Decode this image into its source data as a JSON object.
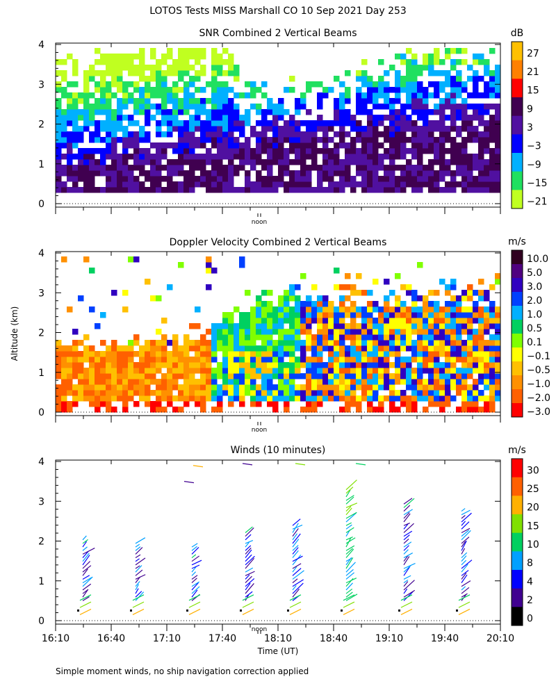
{
  "title": "LOTOS Tests MISS Marshall CO  10 Sep 2021 Day 253",
  "footnote": "Simple moment winds, no ship navigation correction applied",
  "y_axis_label": "Altitude (km)",
  "x_axis_label": "Time (UT)",
  "noon_label": "noon",
  "chart_data": [
    {
      "type": "heatmap",
      "title": "SNR Combined 2 Vertical Beams",
      "unit": "dB",
      "ylim": [
        0,
        4
      ],
      "yticks": [
        0,
        1,
        2,
        3,
        4
      ],
      "colorbar_labels": [
        "27",
        "21",
        "15",
        "9",
        "3",
        "−3",
        "−9",
        "−15",
        "−21"
      ],
      "colors": [
        "#ffc000",
        "#ff8000",
        "#ff0000",
        "#400050",
        "#5010a0",
        "#0000ff",
        "#00b0ff",
        "#20e060",
        "#c0ff20"
      ]
    },
    {
      "type": "heatmap",
      "title": "Doppler Velocity Combined 2 Vertical Beams",
      "unit": "m/s",
      "ylim": [
        0,
        4
      ],
      "yticks": [
        0,
        1,
        2,
        3,
        4
      ],
      "colorbar_labels": [
        "10.0",
        "5.0",
        "3.0",
        "2.0",
        "1.0",
        "0.5",
        "0.1",
        "−0.1",
        "−0.5",
        "−1.0",
        "−2.0",
        "−3.0"
      ],
      "colors": [
        "#300020",
        "#500080",
        "#3000c0",
        "#0040ff",
        "#00b0ff",
        "#00d060",
        "#80ff00",
        "#ffff00",
        "#ffc000",
        "#ff9000",
        "#ff6000",
        "#ff0000"
      ]
    },
    {
      "type": "scatter",
      "title": "Winds (10 minutes)",
      "unit": "m/s",
      "ylim": [
        0,
        4
      ],
      "yticks": [
        0,
        1,
        2,
        3,
        4
      ],
      "x_ticks": [
        "16:10",
        "16:40",
        "17:10",
        "17:40",
        "18:10",
        "18:40",
        "19:10",
        "19:40",
        "20:10"
      ],
      "colorbar_labels": [
        "30",
        "25",
        "20",
        "15",
        "10",
        "8",
        "4",
        "2",
        "0"
      ],
      "colors": [
        "#ff0000",
        "#ff6000",
        "#ffb000",
        "#80e000",
        "#00d060",
        "#00a0ff",
        "#0000ff",
        "#400090",
        "#000000"
      ],
      "profile_times": [
        "16:25",
        "16:55",
        "17:25",
        "17:55",
        "18:25",
        "18:55",
        "19:25",
        "19:55"
      ]
    }
  ]
}
